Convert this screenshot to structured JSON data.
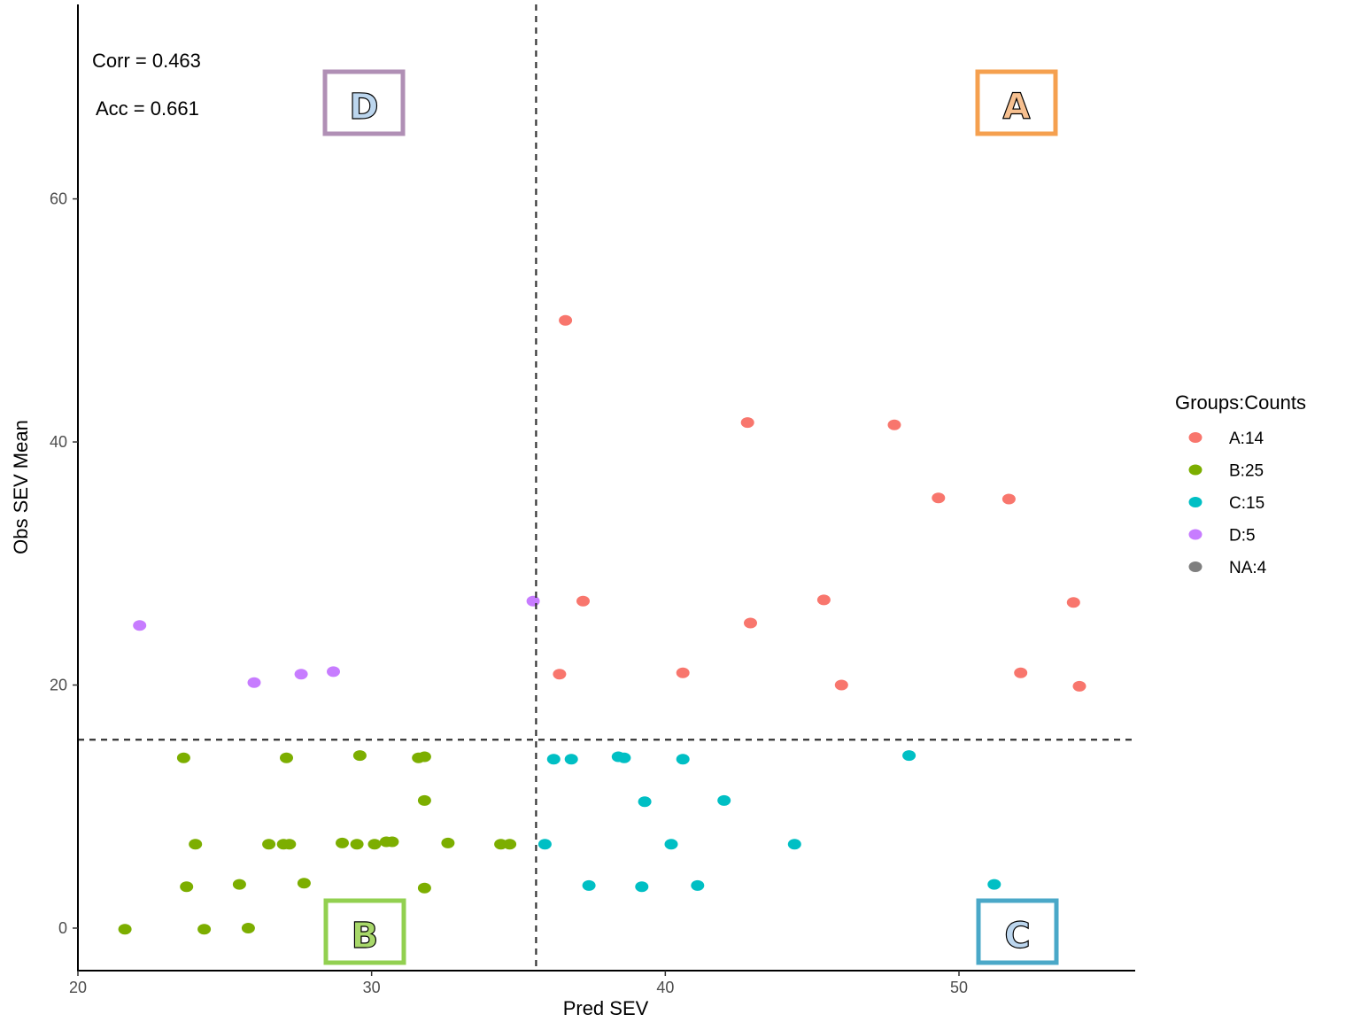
{
  "chart_data": {
    "type": "scatter",
    "xlabel": "Pred SEV",
    "ylabel": "Obs SEV Mean",
    "xlim": [
      20,
      56
    ],
    "ylim": [
      -3.5,
      76
    ],
    "x_ticks": [
      20,
      30,
      40,
      50
    ],
    "y_ticks": [
      0,
      20,
      40,
      60
    ],
    "grid": false,
    "thresholds": {
      "x": 35.6,
      "y": 15.5
    },
    "annotations": {
      "corr": "Corr =  0.463",
      "acc": "Acc =  0.661"
    },
    "quadrant_labels": [
      {
        "letter": "D",
        "color": "#b08fb5",
        "position": "top-left"
      },
      {
        "letter": "A",
        "color": "#f5a04f",
        "position": "top-right"
      },
      {
        "letter": "B",
        "color": "#92d050",
        "position": "bottom-left"
      },
      {
        "letter": "C",
        "color": "#4aa8c8",
        "position": "bottom-right"
      }
    ],
    "legend": {
      "title": "Groups:Counts",
      "placement": "right",
      "entries": [
        {
          "label": "A:14",
          "color": "#f8766d"
        },
        {
          "label": "B:25",
          "color": "#7cae00"
        },
        {
          "label": "C:15",
          "color": "#00bfc4"
        },
        {
          "label": "D:5",
          "color": "#c77cff"
        },
        {
          "label": "NA:4",
          "color": "#7f7f7f"
        }
      ]
    },
    "series": [
      {
        "name": "A:14",
        "color": "#f8766d",
        "points": [
          [
            36.6,
            50.0
          ],
          [
            42.8,
            41.6
          ],
          [
            47.8,
            41.4
          ],
          [
            49.3,
            35.4
          ],
          [
            51.7,
            35.3
          ],
          [
            37.2,
            26.9
          ],
          [
            45.4,
            27.0
          ],
          [
            53.9,
            26.8
          ],
          [
            42.9,
            25.1
          ],
          [
            36.4,
            20.9
          ],
          [
            40.6,
            21.0
          ],
          [
            46.0,
            20.0
          ],
          [
            52.1,
            21.0
          ],
          [
            54.1,
            19.9
          ]
        ]
      },
      {
        "name": "B:25",
        "color": "#7cae00",
        "points": [
          [
            23.6,
            14.0
          ],
          [
            27.1,
            14.0
          ],
          [
            29.6,
            14.2
          ],
          [
            31.6,
            14.0
          ],
          [
            31.8,
            14.1
          ],
          [
            31.8,
            10.5
          ],
          [
            24.0,
            6.9
          ],
          [
            26.5,
            6.9
          ],
          [
            27.0,
            6.9
          ],
          [
            27.2,
            6.9
          ],
          [
            29.0,
            7.0
          ],
          [
            29.5,
            6.9
          ],
          [
            30.1,
            6.9
          ],
          [
            30.5,
            7.1
          ],
          [
            30.7,
            7.1
          ],
          [
            32.6,
            7.0
          ],
          [
            34.4,
            6.9
          ],
          [
            34.7,
            6.9
          ],
          [
            23.7,
            3.4
          ],
          [
            25.5,
            3.6
          ],
          [
            27.7,
            3.7
          ],
          [
            31.8,
            3.3
          ],
          [
            21.6,
            -0.1
          ],
          [
            24.3,
            -0.1
          ],
          [
            25.8,
            0.0
          ]
        ]
      },
      {
        "name": "C:15",
        "color": "#00bfc4",
        "points": [
          [
            36.2,
            13.9
          ],
          [
            36.8,
            13.9
          ],
          [
            38.4,
            14.1
          ],
          [
            38.6,
            14.0
          ],
          [
            40.6,
            13.9
          ],
          [
            48.3,
            14.2
          ],
          [
            39.3,
            10.4
          ],
          [
            42.0,
            10.5
          ],
          [
            35.9,
            6.9
          ],
          [
            40.2,
            6.9
          ],
          [
            44.4,
            6.9
          ],
          [
            37.4,
            3.5
          ],
          [
            39.2,
            3.4
          ],
          [
            41.1,
            3.5
          ],
          [
            51.2,
            3.6
          ]
        ]
      },
      {
        "name": "D:5",
        "color": "#c77cff",
        "points": [
          [
            22.1,
            24.9
          ],
          [
            26.0,
            20.2
          ],
          [
            27.6,
            20.9
          ],
          [
            28.7,
            21.1
          ],
          [
            35.5,
            26.9
          ]
        ]
      }
    ]
  }
}
